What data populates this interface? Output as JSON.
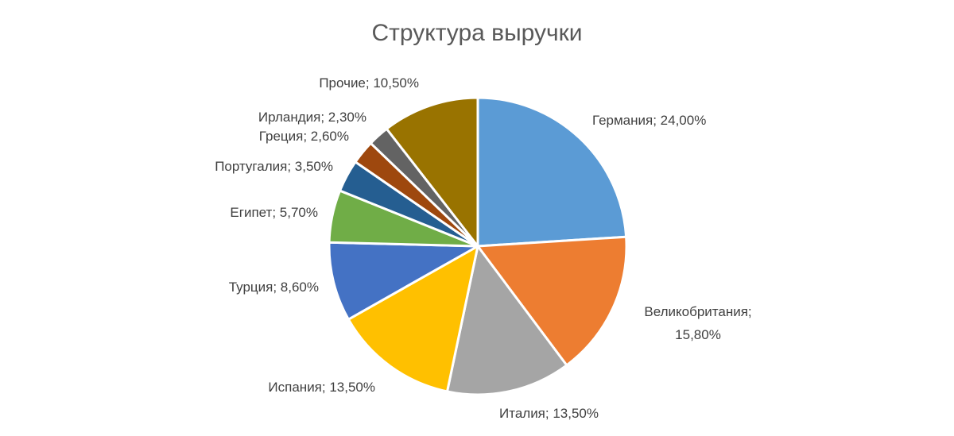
{
  "chart_data": {
    "type": "pie",
    "title": "Структура выручки",
    "start_angle_deg": 0,
    "direction": "clockwise",
    "slices": [
      {
        "label": "Германия; 24,00%",
        "value": 24.0,
        "color": "#5B9BD5"
      },
      {
        "label": "Великобритания; 15,80%",
        "value": 15.8,
        "color": "#ED7D31"
      },
      {
        "label": "Италия; 13,50%",
        "value": 13.5,
        "color": "#A5A5A5"
      },
      {
        "label": "Испания; 13,50%",
        "value": 13.5,
        "color": "#FFC000"
      },
      {
        "label": "Турция; 8,60%",
        "value": 8.6,
        "color": "#4472C4"
      },
      {
        "label": "Египет; 5,70%",
        "value": 5.7,
        "color": "#70AD47"
      },
      {
        "label": "Португалия; 3,50%",
        "value": 3.5,
        "color": "#255E91"
      },
      {
        "label": "Греция; 2,60%",
        "value": 2.6,
        "color": "#9E480E"
      },
      {
        "label": "Ирландия; 2,30%",
        "value": 2.3,
        "color": "#636363"
      },
      {
        "label": "Прочие; 10,50%",
        "value": 10.5,
        "color": "#997300"
      }
    ]
  }
}
